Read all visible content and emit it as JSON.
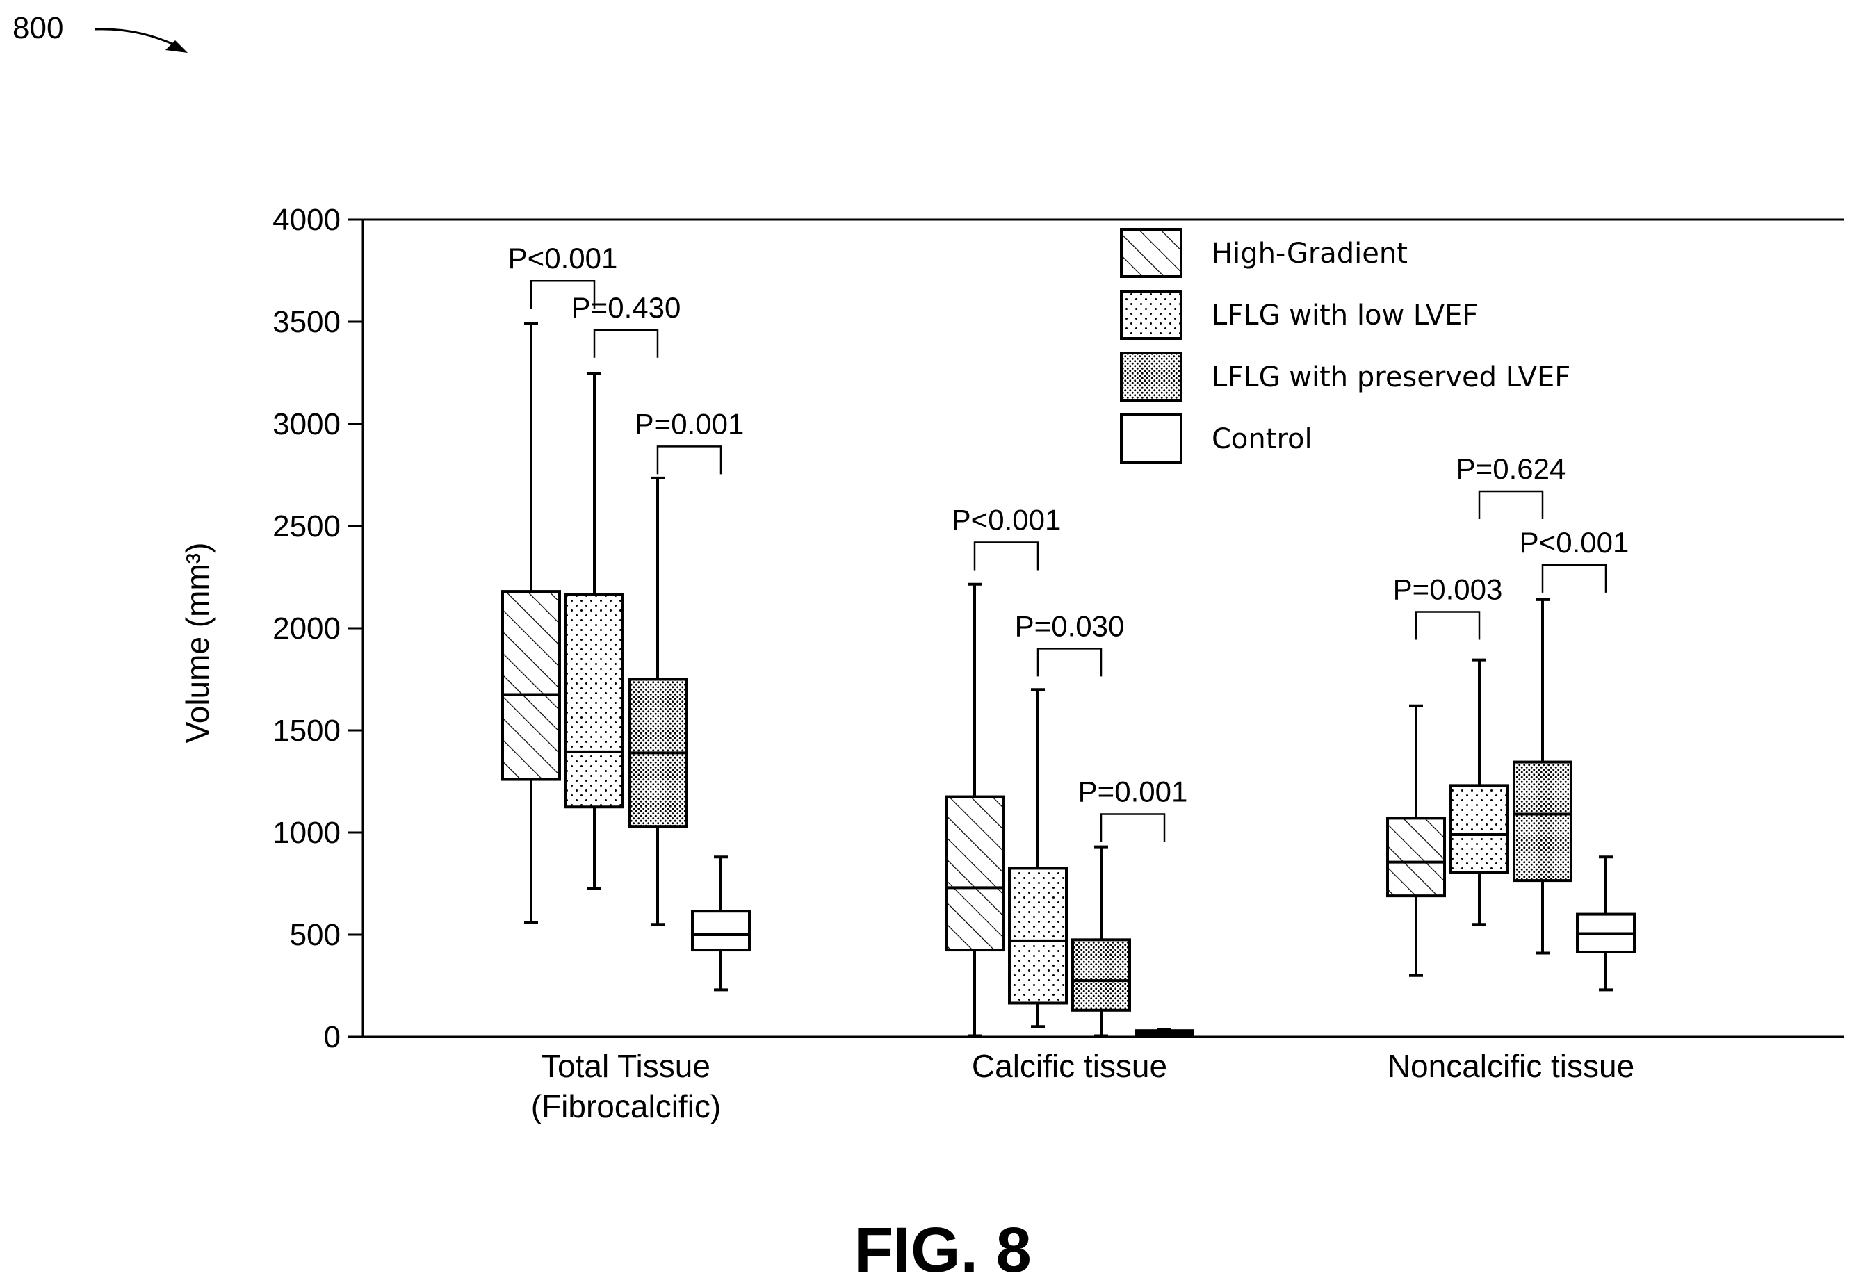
{
  "figure": {
    "ref_number": "800",
    "caption": "FIG. 8"
  },
  "chart_data": {
    "type": "box",
    "title": "",
    "xlabel": "",
    "ylabel": "Volume (mm³)",
    "ylim": [
      0,
      4000
    ],
    "yticks": [
      0,
      500,
      1000,
      1500,
      2000,
      2500,
      3000,
      3500,
      4000
    ],
    "grid": false,
    "legend_position": "top-right",
    "series": [
      {
        "name": "High-Gradient",
        "pattern": "hatch"
      },
      {
        "name": "LFLG with low LVEF",
        "pattern": "sparse-dots"
      },
      {
        "name": "LFLG with preserved LVEF",
        "pattern": "dense-dots"
      },
      {
        "name": "Control",
        "pattern": "none"
      }
    ],
    "groups": [
      {
        "label_lines": [
          "Total Tissue",
          "(Fibrocalcific)"
        ],
        "boxes": [
          {
            "series": "High-Gradient",
            "min": 560,
            "q1": 1260,
            "median": 1675,
            "q3": 2180,
            "max": 3490
          },
          {
            "series": "LFLG with low LVEF",
            "min": 725,
            "q1": 1125,
            "median": 1395,
            "q3": 2165,
            "max": 3245
          },
          {
            "series": "LFLG with preserved LVEF",
            "min": 550,
            "q1": 1030,
            "median": 1390,
            "q3": 1750,
            "max": 2735
          },
          {
            "series": "Control",
            "min": 230,
            "q1": 425,
            "median": 500,
            "q3": 615,
            "max": 880
          }
        ],
        "comparisons": [
          {
            "from": 0,
            "to": 1,
            "label": "P<0.001",
            "level": 3700
          },
          {
            "from": 1,
            "to": 2,
            "label": "P=0.430",
            "level": 3460
          },
          {
            "from": 2,
            "to": 3,
            "label": "P=0.001",
            "level": 2890
          }
        ]
      },
      {
        "label_lines": [
          "Calcific tissue"
        ],
        "boxes": [
          {
            "series": "High-Gradient",
            "min": 5,
            "q1": 425,
            "median": 730,
            "q3": 1175,
            "max": 2215
          },
          {
            "series": "LFLG with low LVEF",
            "min": 50,
            "q1": 165,
            "median": 470,
            "q3": 825,
            "max": 1700
          },
          {
            "series": "LFLG with preserved LVEF",
            "min": 5,
            "q1": 130,
            "median": 275,
            "q3": 475,
            "max": 930
          },
          {
            "series": "Control",
            "min": 0,
            "q1": 10,
            "median": 20,
            "q3": 30,
            "max": 35
          }
        ],
        "comparisons": [
          {
            "from": 0,
            "to": 1,
            "label": "P<0.001",
            "level": 2420
          },
          {
            "from": 1,
            "to": 2,
            "label": "P=0.030",
            "level": 1900
          },
          {
            "from": 2,
            "to": 3,
            "label": "P=0.001",
            "level": 1090
          }
        ]
      },
      {
        "label_lines": [
          "Noncalcific tissue"
        ],
        "boxes": [
          {
            "series": "High-Gradient",
            "min": 300,
            "q1": 690,
            "median": 855,
            "q3": 1070,
            "max": 1620
          },
          {
            "series": "LFLG with low LVEF",
            "min": 550,
            "q1": 805,
            "median": 990,
            "q3": 1230,
            "max": 1845
          },
          {
            "series": "LFLG with preserved LVEF",
            "min": 410,
            "q1": 765,
            "median": 1090,
            "q3": 1345,
            "max": 2140
          },
          {
            "series": "Control",
            "min": 230,
            "q1": 415,
            "median": 505,
            "q3": 600,
            "max": 880
          }
        ],
        "comparisons": [
          {
            "from": 0,
            "to": 1,
            "label": "P=0.003",
            "level": 2080
          },
          {
            "from": 1,
            "to": 2,
            "label": "P=0.624",
            "level": 2670
          },
          {
            "from": 2,
            "to": 3,
            "label": "P<0.001",
            "level": 2310
          }
        ]
      }
    ]
  }
}
